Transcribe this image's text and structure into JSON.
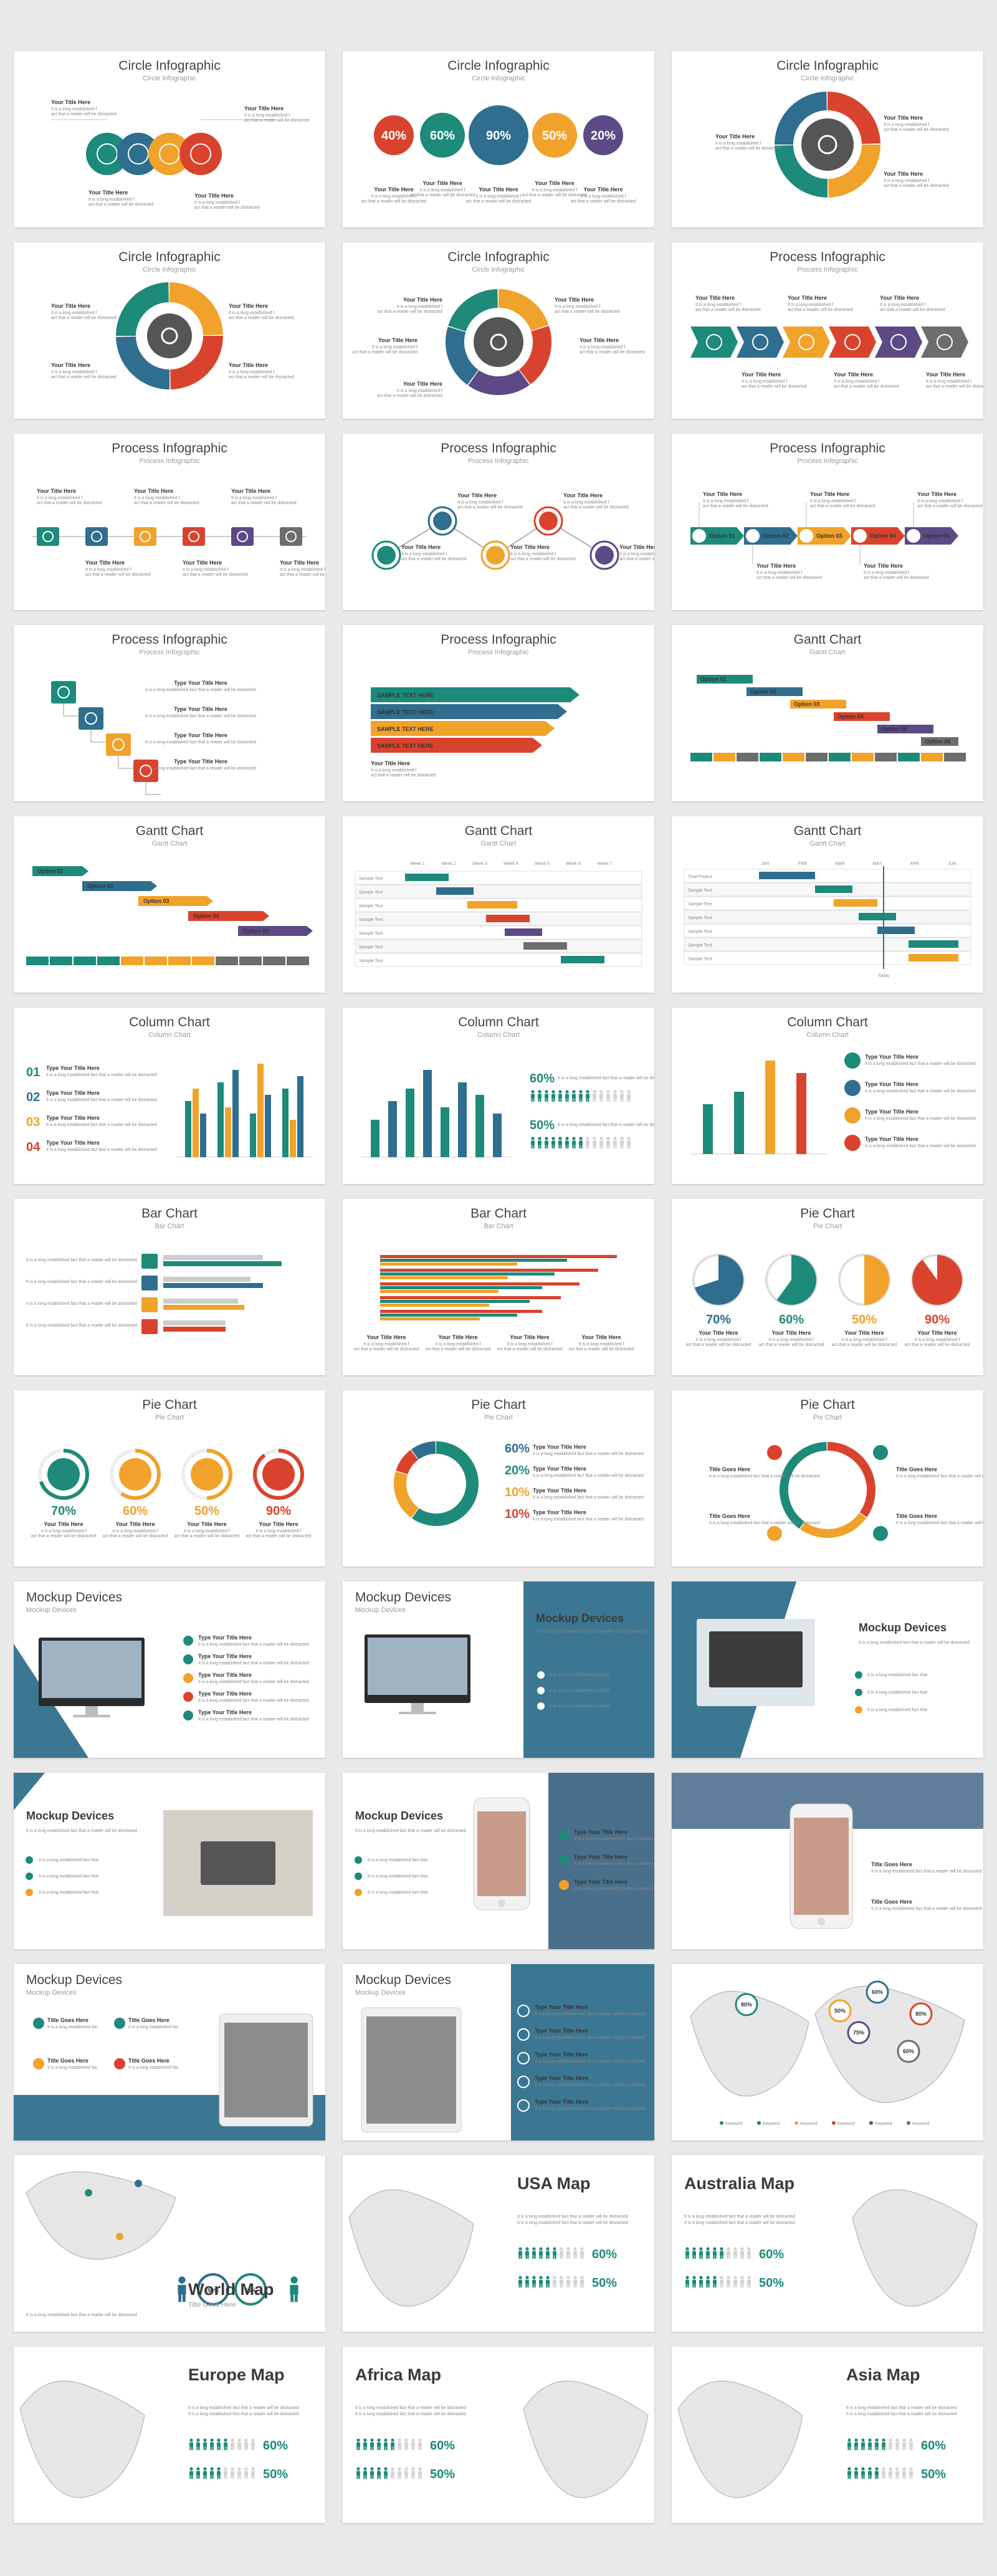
{
  "colors": {
    "teal": "#1d8a7a",
    "blue": "#2f6e8e",
    "orange": "#f1a22a",
    "red": "#d9432d",
    "purple": "#5b4a86",
    "gray": "#6d6d6d",
    "light": "#d3d3d3",
    "accent_panel": "#3b7792"
  },
  "common": {
    "your_title": "Your Title Here",
    "type_title": "Type Your Title Here",
    "title_goes": "Title Goes Here",
    "lorem": "It is a long established fact that a reader will be distracted",
    "sample_text": "SAMPLE TEXT",
    "sample_row": "Sample Text",
    "option": "Option",
    "category": "Category"
  },
  "slides": [
    {
      "title": "Circle Infographic",
      "subtitle": "Circle Infographic"
    },
    {
      "title": "Circle Infographic",
      "subtitle": "Circle Infographic",
      "values": [
        "40%",
        "60%",
        "90%",
        "50%",
        "20%"
      ]
    },
    {
      "title": "Circle Infographic",
      "subtitle": "Circle Infographic"
    },
    {
      "title": "Circle Infographic",
      "subtitle": "Circle Infographic"
    },
    {
      "title": "Circle Infographic",
      "subtitle": "Circle Infographic"
    },
    {
      "title": "Process Infographic",
      "subtitle": "Process Infographic"
    },
    {
      "title": "Process Infographic",
      "subtitle": "Process Infographic"
    },
    {
      "title": "Process Infographic",
      "subtitle": "Process Infographic"
    },
    {
      "title": "Process Infographic",
      "subtitle": "Process Infographic",
      "options": [
        "Option 01",
        "Option 02",
        "Option 03",
        "Option 04",
        "Option 05"
      ]
    },
    {
      "title": "Process Infographic",
      "subtitle": "Process Infographic"
    },
    {
      "title": "Process Infographic",
      "subtitle": "Process Infographic"
    },
    {
      "title": "Gantt Chart",
      "subtitle": "Gantt Chart"
    },
    {
      "title": "Gantt Chart",
      "subtitle": "Gantt Chart"
    },
    {
      "title": "Gantt Chart",
      "subtitle": "Gantt Chart",
      "weeks": [
        "Week 1",
        "Week 2",
        "Week 3",
        "Week 4",
        "Week 5",
        "Week 6",
        "Week 7"
      ]
    },
    {
      "title": "Gantt Chart",
      "subtitle": "Gantt Chart",
      "months": [
        "JAN",
        "FEB",
        "MAR",
        "MAY",
        "APR",
        "JUN"
      ],
      "first_row": "Total Project",
      "today": "Today"
    },
    {
      "title": "Column Chart",
      "subtitle": "Column Chart",
      "numbers": [
        "01",
        "02",
        "03",
        "04"
      ]
    },
    {
      "title": "Column Chart",
      "subtitle": "Column Chart",
      "stats": [
        "60%",
        "50%"
      ]
    },
    {
      "title": "Column Chart",
      "subtitle": "Column Chart"
    },
    {
      "title": "Bar Chart",
      "subtitle": "Bar Chart"
    },
    {
      "title": "Bar Chart",
      "subtitle": "Bar Chart"
    },
    {
      "title": "Pie Chart",
      "subtitle": "Pie Chart",
      "values": [
        "70%",
        "60%",
        "50%",
        "90%"
      ]
    },
    {
      "title": "Pie Chart",
      "subtitle": "Pie Chart",
      "values": [
        "70%",
        "60%",
        "50%",
        "90%"
      ]
    },
    {
      "title": "Pie Chart",
      "subtitle": "Pie Chart",
      "values": [
        "60%",
        "20%",
        "10%",
        "10%"
      ]
    },
    {
      "title": "Pie Chart",
      "subtitle": "Pie Chart"
    },
    {
      "title": "Mockup Devices",
      "subtitle": "Mockup Devices"
    },
    {
      "title": "Mockup Devices",
      "subtitle": "Mockup Devices",
      "panel_title": "Mockup Devices"
    },
    {
      "title": "Mockup Devices",
      "subtitle": ""
    },
    {
      "title": "Mockup Devices",
      "subtitle": ""
    },
    {
      "title": "Mockup Devices",
      "subtitle": ""
    },
    {
      "title": "",
      "subtitle": ""
    },
    {
      "title": "Mockup Devices",
      "subtitle": "Mockup Devices"
    },
    {
      "title": "Mockup Devices",
      "subtitle": "Mockup Devices"
    },
    {
      "title": "",
      "subtitle": "",
      "values": [
        "80%",
        "60%",
        "50%",
        "80%",
        "75%",
        "60%"
      ]
    },
    {
      "title": "World Map",
      "subtitle": "Title Goes Here",
      "values": [
        "50%",
        "65%"
      ]
    },
    {
      "title": "USA Map",
      "subtitle": "",
      "values": [
        "60%",
        "50%"
      ]
    },
    {
      "title": "Australia Map",
      "subtitle": "",
      "values": [
        "60%",
        "50%"
      ]
    },
    {
      "title": "Europe Map",
      "subtitle": "",
      "values": [
        "60%",
        "50%"
      ]
    },
    {
      "title": "Africa Map",
      "subtitle": "",
      "values": [
        "60%",
        "50%"
      ]
    },
    {
      "title": "Asia Map",
      "subtitle": "",
      "values": [
        "60%",
        "50%"
      ]
    }
  ]
}
